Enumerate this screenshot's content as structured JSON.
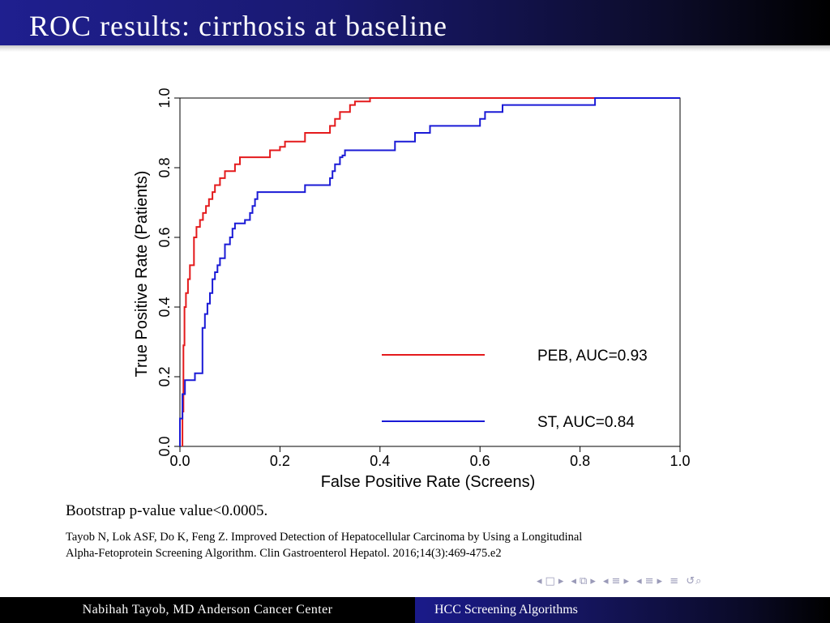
{
  "slide": {
    "title": "ROC results: cirrhosis at baseline",
    "bootstrap": "Bootstrap p-value value<0.0005.",
    "citation_line1": "Tayob N, Lok ASF, Do K, Feng Z. Improved Detection of Hepatocellular Carcinoma by Using a Longitudinal",
    "citation_line2": "Alpha-Fetoprotein Screening Algorithm. Clin Gastroenterol Hepatol. 2016;14(3):469-475.e2"
  },
  "footer": {
    "left": "Nabihah Tayob, MD Anderson Cancer Center",
    "right": "HCC Screening Algorithms"
  },
  "nav": {
    "icons": [
      "nav-frame-prev-icon",
      "nav-frame-icon",
      "nav-frame-next-icon",
      "nav-subsection-prev-icon",
      "nav-subsection-icon",
      "nav-subsection-next-icon",
      "nav-section-prev-icon",
      "nav-section-icon",
      "nav-section-next-icon",
      "nav-doc-prev-icon",
      "nav-doc-icon",
      "nav-doc-next-icon",
      "nav-align-icon",
      "nav-search-icon"
    ],
    "color": "#9a9ab8"
  },
  "colors": {
    "title_bar": "#191970",
    "peb": "#e41a1c",
    "st": "#1a1ad6"
  },
  "chart_data": {
    "type": "line",
    "title": "",
    "xlabel": "False Positive Rate (Screens)",
    "ylabel": "True Positive Rate (Patients)",
    "xlim": [
      0,
      1
    ],
    "ylim": [
      0,
      1
    ],
    "xticks": [
      "0.0",
      "0.2",
      "0.4",
      "0.6",
      "0.8",
      "1.0"
    ],
    "yticks": [
      "0.0",
      "0.2",
      "0.4",
      "0.6",
      "0.8",
      "1.0"
    ],
    "grid": false,
    "legend_position": "bottom-right",
    "series": [
      {
        "name": "PEB, AUC=0.93",
        "color": "#e41a1c",
        "x": [
          0.005,
          0.005,
          0.007,
          0.007,
          0.009,
          0.009,
          0.012,
          0.012,
          0.016,
          0.016,
          0.02,
          0.02,
          0.028,
          0.028,
          0.033,
          0.033,
          0.04,
          0.04,
          0.046,
          0.046,
          0.052,
          0.052,
          0.058,
          0.058,
          0.065,
          0.065,
          0.07,
          0.07,
          0.08,
          0.08,
          0.09,
          0.09,
          0.11,
          0.11,
          0.12,
          0.12,
          0.18,
          0.18,
          0.2,
          0.2,
          0.21,
          0.21,
          0.25,
          0.25,
          0.3,
          0.3,
          0.31,
          0.31,
          0.32,
          0.32,
          0.34,
          0.34,
          0.35,
          0.35,
          0.38,
          0.38,
          1.0
        ],
        "y": [
          0,
          0.1,
          0.1,
          0.29,
          0.29,
          0.4,
          0.4,
          0.44,
          0.44,
          0.48,
          0.48,
          0.52,
          0.52,
          0.6,
          0.6,
          0.63,
          0.63,
          0.65,
          0.65,
          0.67,
          0.67,
          0.69,
          0.69,
          0.71,
          0.71,
          0.73,
          0.73,
          0.75,
          0.75,
          0.77,
          0.77,
          0.79,
          0.79,
          0.81,
          0.81,
          0.83,
          0.83,
          0.85,
          0.85,
          0.86,
          0.86,
          0.875,
          0.875,
          0.9,
          0.9,
          0.92,
          0.92,
          0.94,
          0.94,
          0.96,
          0.96,
          0.98,
          0.98,
          0.99,
          0.99,
          1.0,
          1.0
        ]
      },
      {
        "name": "ST, AUC=0.84",
        "color": "#1a1ad6",
        "x": [
          0,
          0,
          0.005,
          0.005,
          0.01,
          0.01,
          0.03,
          0.03,
          0.045,
          0.045,
          0.05,
          0.05,
          0.055,
          0.055,
          0.06,
          0.06,
          0.065,
          0.065,
          0.07,
          0.07,
          0.075,
          0.075,
          0.08,
          0.08,
          0.09,
          0.09,
          0.1,
          0.1,
          0.105,
          0.105,
          0.11,
          0.11,
          0.13,
          0.13,
          0.14,
          0.14,
          0.145,
          0.145,
          0.15,
          0.15,
          0.155,
          0.155,
          0.195,
          0.195,
          0.25,
          0.25,
          0.3,
          0.3,
          0.305,
          0.305,
          0.31,
          0.31,
          0.32,
          0.32,
          0.325,
          0.325,
          0.33,
          0.33,
          0.43,
          0.43,
          0.47,
          0.47,
          0.5,
          0.5,
          0.6,
          0.6,
          0.61,
          0.61,
          0.645,
          0.645,
          0.83,
          0.83,
          1.0
        ],
        "y": [
          0,
          0.08,
          0.08,
          0.15,
          0.15,
          0.19,
          0.19,
          0.21,
          0.21,
          0.34,
          0.34,
          0.38,
          0.38,
          0.41,
          0.41,
          0.44,
          0.44,
          0.48,
          0.48,
          0.5,
          0.5,
          0.52,
          0.52,
          0.54,
          0.54,
          0.58,
          0.58,
          0.6,
          0.6,
          0.625,
          0.625,
          0.64,
          0.64,
          0.65,
          0.65,
          0.67,
          0.67,
          0.69,
          0.69,
          0.71,
          0.71,
          0.73,
          0.73,
          0.73,
          0.73,
          0.75,
          0.75,
          0.77,
          0.77,
          0.79,
          0.79,
          0.81,
          0.81,
          0.83,
          0.83,
          0.835,
          0.835,
          0.85,
          0.85,
          0.875,
          0.875,
          0.9,
          0.9,
          0.92,
          0.92,
          0.94,
          0.94,
          0.96,
          0.96,
          0.98,
          0.98,
          1.0,
          1.0
        ]
      }
    ]
  }
}
